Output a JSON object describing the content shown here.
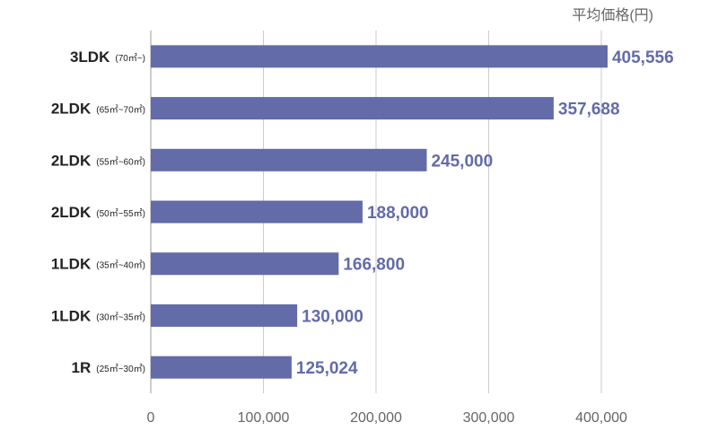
{
  "chart_data": {
    "type": "bar",
    "orientation": "horizontal",
    "unit_label": "平均価格(円)",
    "categories": [
      {
        "main": "3LDK",
        "sub": "(70㎡~)"
      },
      {
        "main": "2LDK",
        "sub": "(65㎡~70㎡)"
      },
      {
        "main": "2LDK",
        "sub": "(55㎡~60㎡)"
      },
      {
        "main": "2LDK",
        "sub": "(50㎡~55㎡)"
      },
      {
        "main": "1LDK",
        "sub": "(35㎡~40㎡)"
      },
      {
        "main": "1LDK",
        "sub": "(30㎡~35㎡)"
      },
      {
        "main": "1R",
        "sub": "(25㎡~30㎡)"
      }
    ],
    "values": [
      405556,
      357688,
      245000,
      188000,
      166800,
      130000,
      125024
    ],
    "value_labels": [
      "405,556",
      "357,688",
      "245,000",
      "188,000",
      "166,800",
      "130,000",
      "125,024"
    ],
    "xticks": [
      0,
      100000,
      200000,
      300000,
      400000
    ],
    "xtick_labels": [
      "0",
      "100,000",
      "200,000",
      "300,000",
      "400,000"
    ],
    "xlim": [
      0,
      400000
    ],
    "grid": true,
    "legend": "none",
    "colors": {
      "bar": "#636ba8",
      "value_label": "#636ba8",
      "grid": "#cccccc",
      "axis": "#999999"
    }
  }
}
